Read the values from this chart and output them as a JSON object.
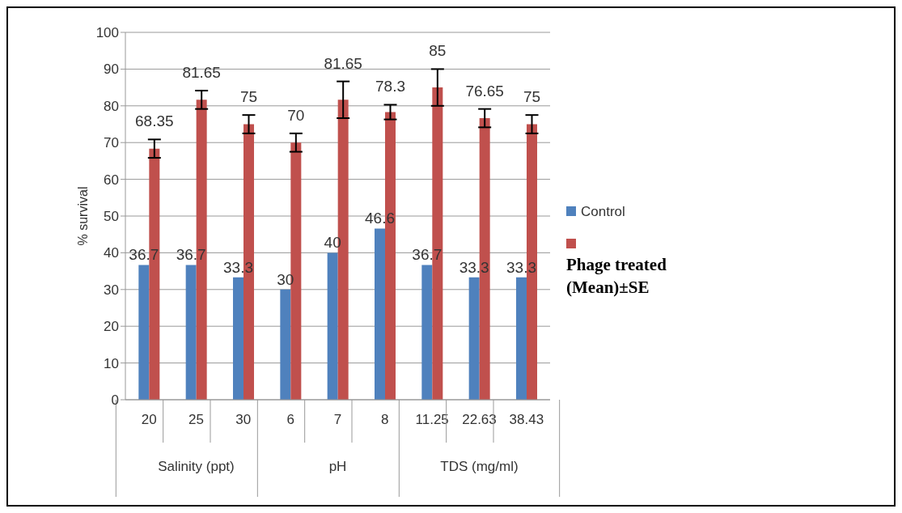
{
  "chart_data": {
    "type": "bar",
    "ylabel": "% survival",
    "categories": [
      "20",
      "25",
      "30",
      "6",
      "7",
      "8",
      "11.25",
      "22.63",
      "38.43"
    ],
    "series": [
      {
        "name": "Control",
        "color": "#4f81bd",
        "values": [
          36.7,
          36.7,
          33.3,
          30,
          40,
          46.6,
          36.7,
          33.3,
          33.3
        ]
      },
      {
        "name": "Phage treated (Mean)±SE",
        "color": "#c0504d",
        "values": [
          68.35,
          81.65,
          75,
          70,
          81.65,
          78.3,
          85,
          76.65,
          75
        ],
        "errors": [
          2.5,
          2.5,
          2.5,
          2.5,
          5,
          2,
          5,
          2.5,
          2.5
        ]
      }
    ],
    "annotations": [
      "Salinity (ppt)",
      "pH",
      "TDS (mg/ml)"
    ],
    "ylim": [
      0,
      100
    ],
    "yticks": [
      0,
      10,
      20,
      30,
      40,
      50,
      60,
      70,
      80,
      90,
      100
    ],
    "grid": "y",
    "legend": "right",
    "data_labels": true
  }
}
